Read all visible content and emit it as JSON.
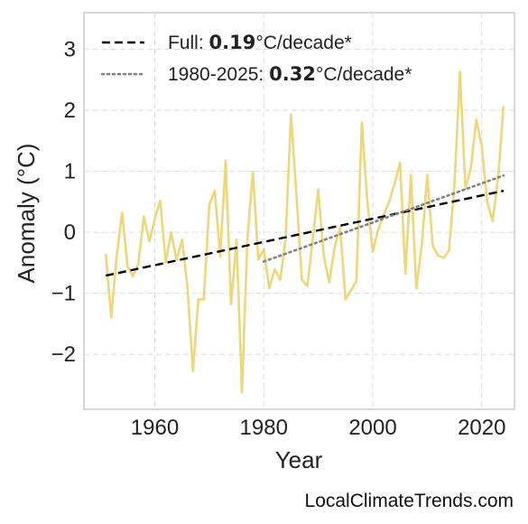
{
  "chart_data": {
    "type": "line",
    "xlabel": "Year",
    "ylabel": "Anomaly (°C)",
    "xlim": [
      1947,
      2026
    ],
    "ylim": [
      -2.9,
      3.6
    ],
    "x_ticks": [
      1960,
      1980,
      2000,
      2020
    ],
    "y_ticks": [
      -2,
      -1,
      0,
      1,
      2,
      3
    ],
    "y_tick_labels": [
      "−2",
      "−1",
      "0",
      "1",
      "2",
      "3"
    ],
    "grid": true,
    "legend_position": "top-left",
    "series": [
      {
        "color": "#f0d67a",
        "x": [
          1951,
          1952,
          1953,
          1954,
          1955,
          1956,
          1957,
          1958,
          1959,
          1960,
          1961,
          1962,
          1963,
          1964,
          1965,
          1966,
          1967,
          1968,
          1969,
          1970,
          1971,
          1972,
          1973,
          1974,
          1975,
          1976,
          1977,
          1978,
          1979,
          1980,
          1981,
          1982,
          1983,
          1984,
          1985,
          1986,
          1987,
          1988,
          1989,
          1990,
          1991,
          1992,
          1993,
          1994,
          1995,
          1996,
          1997,
          1998,
          1999,
          2000,
          2001,
          2002,
          2003,
          2004,
          2005,
          2006,
          2007,
          2008,
          2009,
          2010,
          2011,
          2012,
          2013,
          2014,
          2015,
          2016,
          2017,
          2018,
          2019,
          2020,
          2021,
          2022,
          2023,
          2024
        ],
        "y": [
          -0.35,
          -1.4,
          -0.4,
          0.32,
          -0.55,
          -0.72,
          -0.5,
          0.26,
          -0.15,
          0.22,
          0.52,
          -0.5,
          0.0,
          -0.45,
          -0.12,
          -0.9,
          -2.27,
          -1.1,
          -1.1,
          0.45,
          0.68,
          -0.4,
          1.17,
          -1.18,
          -0.12,
          -2.62,
          -0.1,
          0.99,
          -0.45,
          -0.27,
          -0.92,
          -0.6,
          -0.78,
          -0.12,
          1.93,
          0.6,
          -0.78,
          -0.88,
          -0.1,
          0.7,
          -0.38,
          -0.82,
          -0.25,
          0.08,
          -1.1,
          -0.95,
          -0.8,
          1.8,
          0.5,
          -0.32,
          0.05,
          0.28,
          0.5,
          0.8,
          1.14,
          -0.68,
          0.94,
          -0.92,
          -0.2,
          0.94,
          -0.22,
          -0.38,
          -0.42,
          -0.3,
          0.8,
          2.63,
          0.72,
          1.05,
          1.85,
          1.4,
          0.5,
          0.18,
          0.9,
          2.07
        ]
      }
    ],
    "trend_lines": [
      {
        "label_prefix": "Full: ",
        "rate": "0.19",
        "label_suffix": "°C/decade*",
        "x": [
          1951,
          2024
        ],
        "y": [
          -0.71,
          0.68
        ],
        "color": "#000000",
        "style": "dashed"
      },
      {
        "label_prefix": "1980-2025: ",
        "rate": "0.32",
        "label_suffix": "°C/decade*",
        "x": [
          1980,
          2024
        ],
        "y": [
          -0.48,
          0.93
        ],
        "color": "#808080",
        "style": "dotted"
      }
    ]
  },
  "watermark": "LocalClimateTrends.com"
}
